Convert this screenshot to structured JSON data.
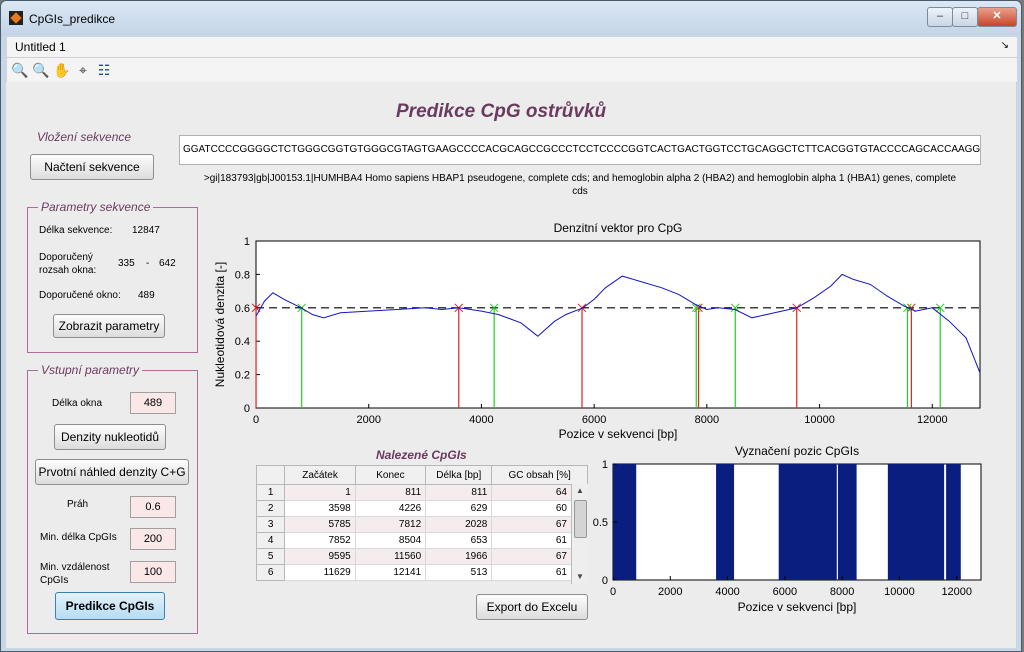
{
  "window": {
    "title": "CpGIs_predikce",
    "minimize": "–",
    "maximize": "□",
    "close": "✕"
  },
  "menu": {
    "label": "Untitled 1",
    "arrow": "↘"
  },
  "toolbar": {
    "zoom_in": "🔍",
    "zoom_out": "🔍",
    "pan": "✋",
    "datatip": "⌖",
    "legend": "☷"
  },
  "main_title": "Predikce CpG ostrůvků",
  "load": {
    "title": "Vložení sekvence",
    "button": "Načtení sekvence"
  },
  "sequence": {
    "text": "GGATCCCCGGGGCTCTGGGCGGTGTGGGCGTAGTGAAGCCCCACGCAGCCGCCCTCCTCCCCGGTCACTGACTGGTCCTGCAGGCTCTTCACGGTGTACCCCAGCACCAAGGTCTA",
    "description": ">gi|183793|gb|J00153.1|HUMHBA4 Homo sapiens HBAP1 pseudogene, complete cds; and hemoglobin alpha 2 (HBA2) and hemoglobin alpha 1 (HBA1) genes, complete cds"
  },
  "params": {
    "title": "Parametry sekvence",
    "len_label": "Délka sekvence:",
    "len_value": "12847",
    "range_label": "Doporučený rozsah okna:",
    "range_min": "335",
    "range_dash": "-",
    "range_max": "642",
    "win_label": "Doporučené okno:",
    "win_value": "489",
    "button": "Zobrazit parametry"
  },
  "input": {
    "title": "Vstupní parametry",
    "window_label": "Délka okna",
    "window_value": "489",
    "density_button": "Denzity nukleotidů",
    "preview_button": "Prvotní náhled denzity C+G",
    "threshold_label": "Práh",
    "threshold_value": "0.6",
    "minlen_label": "Min. délka CpGIs",
    "minlen_value": "200",
    "mindist_label": "Min. vzdálenost CpGIs",
    "mindist_value": "100",
    "predict_button": "Predikce CpGIs"
  },
  "table": {
    "title": "Nalezené CpGIs",
    "headers": [
      "Začátek",
      "Konec",
      "Délka [bp]",
      "GC obsah [%]"
    ],
    "rows": [
      [
        "1",
        "1",
        "811",
        "811",
        "64"
      ],
      [
        "2",
        "3598",
        "4226",
        "629",
        "60"
      ],
      [
        "3",
        "5785",
        "7812",
        "2028",
        "67"
      ],
      [
        "4",
        "7852",
        "8504",
        "653",
        "61"
      ],
      [
        "5",
        "9595",
        "11560",
        "1966",
        "67"
      ],
      [
        "6",
        "11629",
        "12141",
        "513",
        "61"
      ]
    ]
  },
  "export_button": "Export do Excelu",
  "colors": {
    "density_line": "#1414c8",
    "start_marker": "#e02020",
    "end_marker": "#20d020",
    "bars": "#0a1e80",
    "threshold": "#000000"
  },
  "chart_data": [
    {
      "type": "line",
      "title": "Denzitní vektor pro CpG",
      "xlabel": "Pozice v sekvenci [bp]",
      "ylabel": "Nukleotidová denzita [-]",
      "xlim": [
        0,
        12847
      ],
      "ylim": [
        0,
        1
      ],
      "xticks": [
        "0",
        "2000",
        "4000",
        "6000",
        "8000",
        "10000",
        "12000"
      ],
      "yticks": [
        "0",
        "0.2",
        "0.4",
        "0.6",
        "0.8",
        "1"
      ],
      "threshold": 0.6,
      "series": [
        {
          "x": [
            0,
            150,
            300,
            500,
            800,
            1000,
            1200,
            1500,
            2000,
            2500,
            3000,
            3300,
            3600,
            4000,
            4300,
            4700,
            5000,
            5300,
            5500,
            5800,
            6000,
            6200,
            6500,
            6800,
            7200,
            7500,
            7800,
            8000,
            8200,
            8500,
            8800,
            9200,
            9600,
            9900,
            10200,
            10400,
            10600,
            10900,
            11200,
            11500,
            11700,
            12000,
            12300,
            12600,
            12847
          ],
          "y": [
            0.55,
            0.64,
            0.69,
            0.65,
            0.6,
            0.56,
            0.54,
            0.57,
            0.58,
            0.59,
            0.6,
            0.59,
            0.6,
            0.58,
            0.56,
            0.51,
            0.43,
            0.52,
            0.56,
            0.6,
            0.65,
            0.72,
            0.79,
            0.76,
            0.72,
            0.68,
            0.62,
            0.59,
            0.6,
            0.59,
            0.54,
            0.57,
            0.6,
            0.66,
            0.73,
            0.8,
            0.77,
            0.74,
            0.67,
            0.61,
            0.58,
            0.6,
            0.52,
            0.42,
            0.21
          ]
        }
      ],
      "starts": [
        1,
        3598,
        5785,
        7852,
        9595,
        11629
      ],
      "ends": [
        811,
        4226,
        7812,
        8504,
        11560,
        12141
      ]
    },
    {
      "type": "bar",
      "title": "Vyznačení pozic CpGIs",
      "xlabel": "Pozice v sekvenci [bp]",
      "xlim": [
        0,
        12847
      ],
      "ylim": [
        0,
        1
      ],
      "xticks": [
        "0",
        "2000",
        "4000",
        "6000",
        "8000",
        "10000",
        "12000"
      ],
      "yticks": [
        "0",
        "0.5",
        "1"
      ],
      "intervals": [
        [
          1,
          811
        ],
        [
          3598,
          4226
        ],
        [
          5785,
          7812
        ],
        [
          7852,
          8504
        ],
        [
          9595,
          11560
        ],
        [
          11629,
          12141
        ]
      ]
    }
  ]
}
